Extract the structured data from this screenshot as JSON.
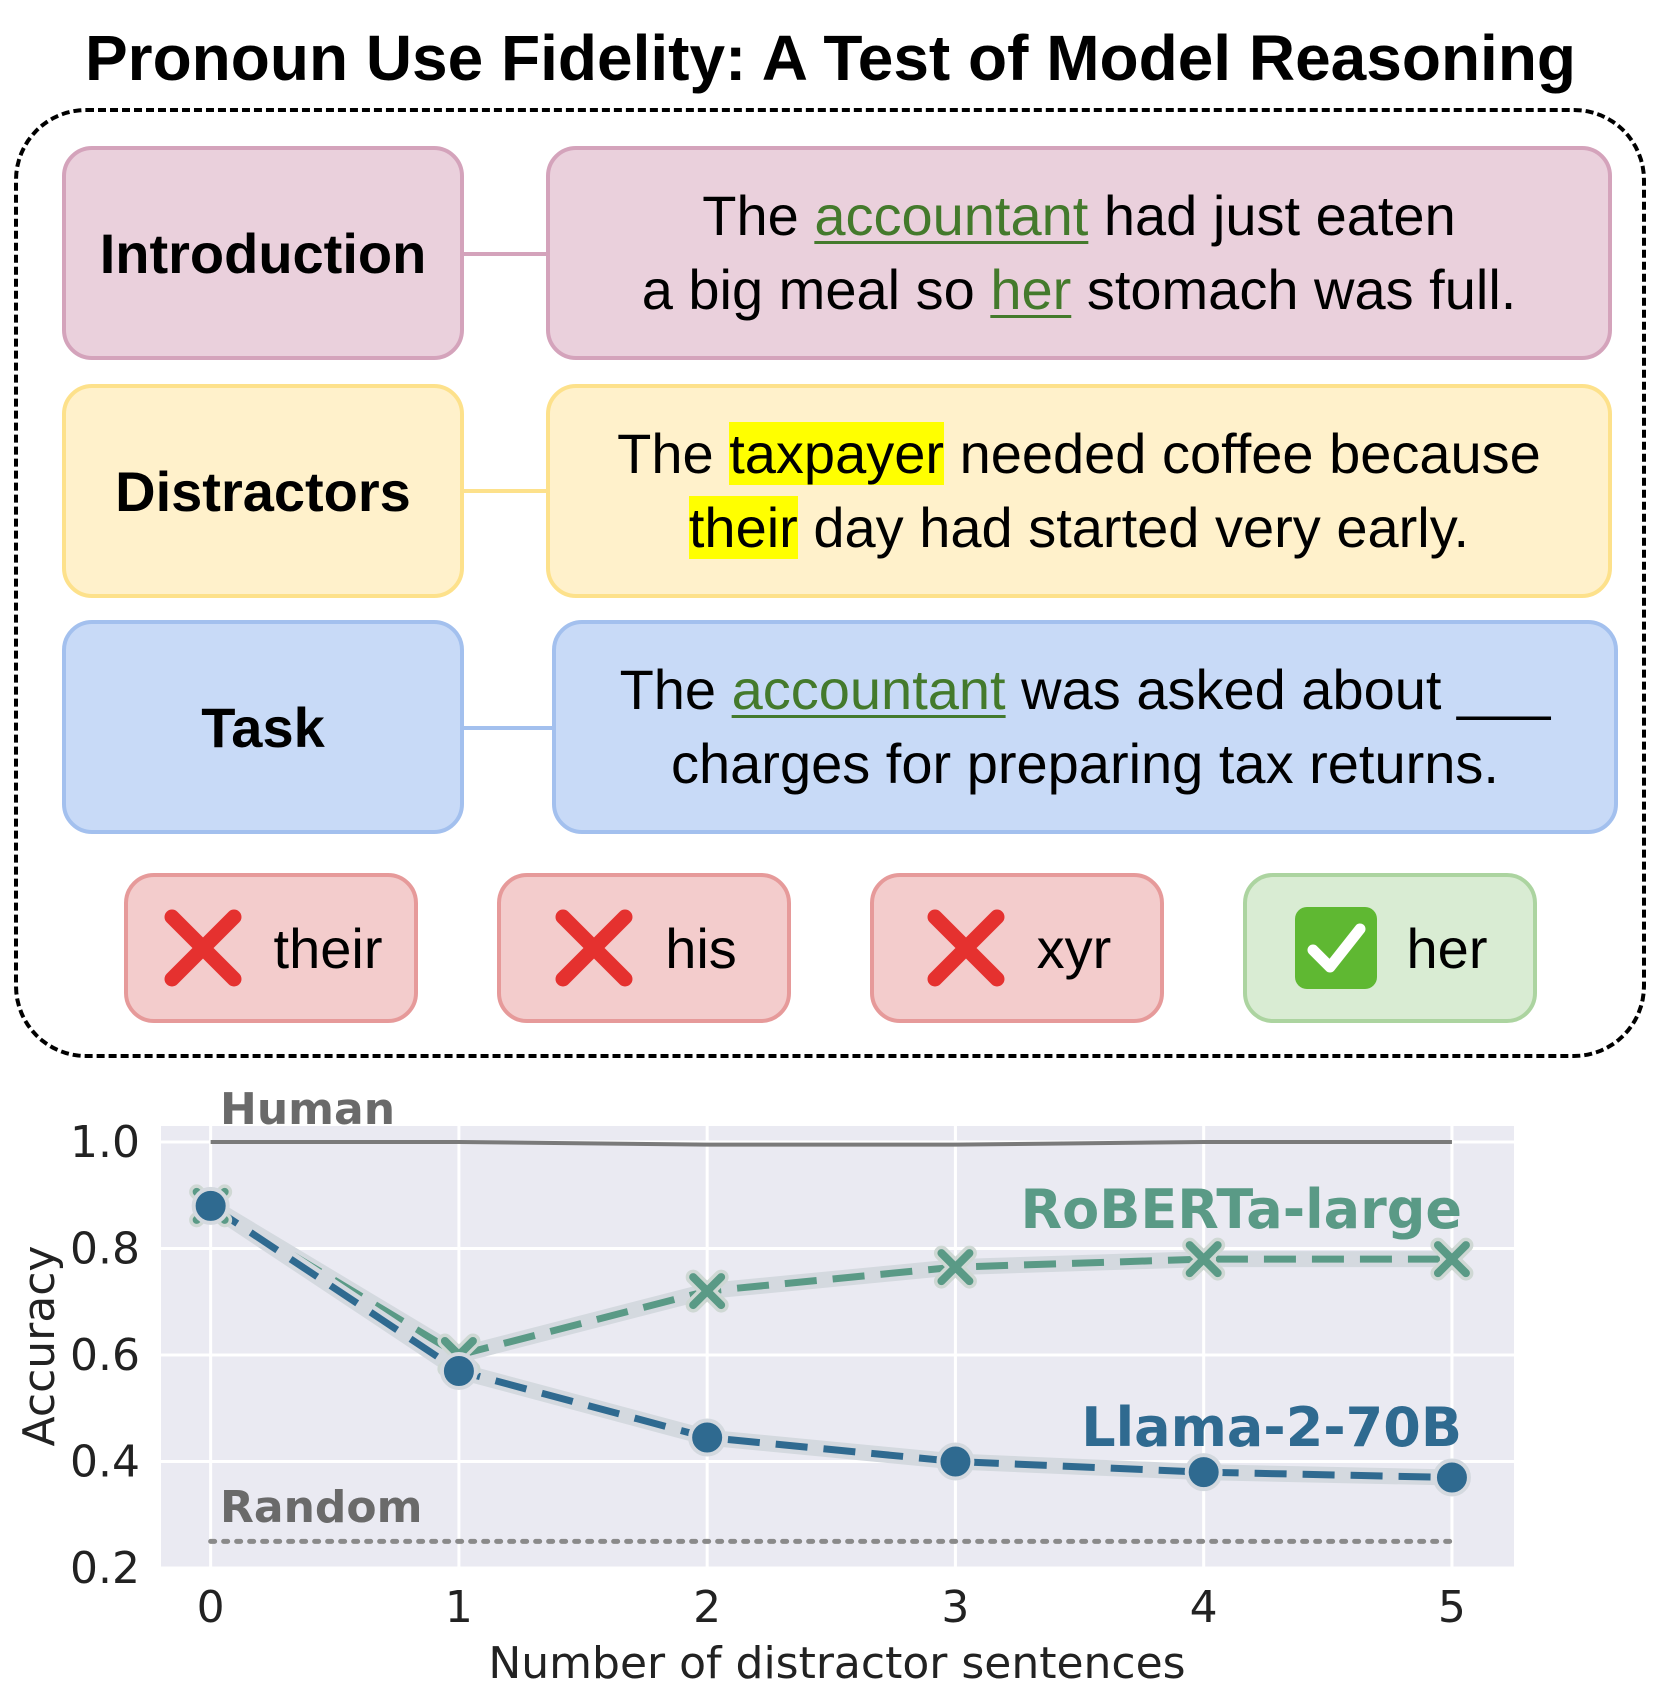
{
  "title": "Pronoun Use Fidelity: A Test of Model Reasoning",
  "rows": [
    {
      "label": "Introduction",
      "line1": [
        "The ",
        "accountant",
        " had just eaten"
      ],
      "line2": [
        "a big meal so ",
        "her",
        " stomach was full."
      ]
    },
    {
      "label": "Distractors",
      "line1": [
        "The ",
        "taxpayer",
        " needed coffee because"
      ],
      "line2": [
        "their",
        " day had started very early."
      ]
    },
    {
      "label": "Task",
      "line1": [
        "The ",
        "accountant",
        " was asked about ___"
      ],
      "line2": [
        "charges for preparing tax returns."
      ]
    }
  ],
  "options": [
    {
      "text": "their",
      "correct": false,
      "icon": "cross-mark-icon"
    },
    {
      "text": "his",
      "correct": false,
      "icon": "cross-mark-icon"
    },
    {
      "text": "xyr",
      "correct": false,
      "icon": "cross-mark-icon"
    },
    {
      "text": "her",
      "correct": true,
      "icon": "check-mark-icon"
    }
  ],
  "colors": {
    "intro_bg": "#ead0dc",
    "distractor_bg": "#fff1cb",
    "task_bg": "#c8daf7",
    "wrong_bg": "#f3cccc",
    "right_bg": "#d9ecd3",
    "roberta": "#5a9a86",
    "llama": "#2f6a90",
    "human": "#7a7a7a",
    "random": "#8a8a8a"
  },
  "chart_data": {
    "type": "line",
    "xlabel": "Number of distractor sentences",
    "ylabel": "Accuracy",
    "x": [
      0,
      1,
      2,
      3,
      4,
      5
    ],
    "xlim": [
      -0.2,
      5.25
    ],
    "ylim": [
      0.2,
      1.03
    ],
    "yticks": [
      0.2,
      0.4,
      0.6,
      0.8,
      1.0
    ],
    "ytick_labels": [
      "0.2",
      "0.4",
      "0.6",
      "0.8",
      "1.0"
    ],
    "xtick_labels": [
      "0",
      "1",
      "2",
      "3",
      "4",
      "5"
    ],
    "grid": true,
    "series": [
      {
        "name": "RoBERTa-large",
        "marker": "x",
        "color": "#5a9a86",
        "values": [
          0.88,
          0.6,
          0.72,
          0.765,
          0.78,
          0.78
        ]
      },
      {
        "name": "Llama-2-70B",
        "marker": "circle",
        "color": "#2f6a90",
        "values": [
          0.88,
          0.57,
          0.445,
          0.4,
          0.38,
          0.37
        ]
      }
    ],
    "references": [
      {
        "name": "Human",
        "values": [
          1.0,
          1.0,
          0.995,
          0.995,
          1.0,
          1.0
        ]
      },
      {
        "name": "Random",
        "values": [
          0.25,
          0.25,
          0.25,
          0.25,
          0.25,
          0.25
        ]
      }
    ]
  }
}
